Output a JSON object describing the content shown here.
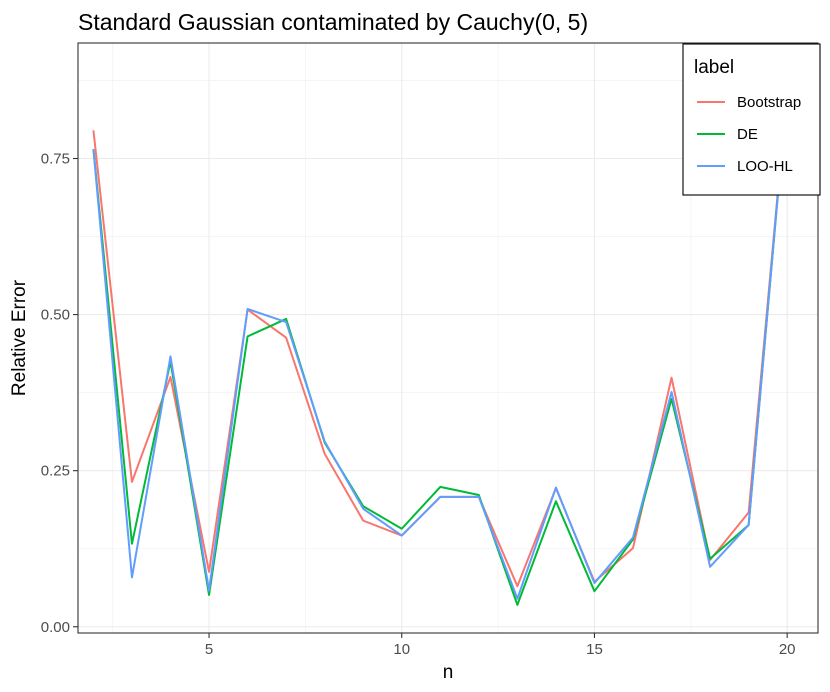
{
  "chart_data": {
    "type": "line",
    "title": "Standard Gaussian contaminated by Cauchy(0, 5)",
    "xlabel": "n",
    "ylabel": "Relative Error",
    "xlim": [
      1.6,
      20.8
    ],
    "ylim": [
      -0.01,
      0.935
    ],
    "x_ticks": [
      5,
      10,
      15,
      20
    ],
    "y_ticks": [
      0.0,
      0.25,
      0.5,
      0.75
    ],
    "x_tick_labels": [
      "5",
      "10",
      "15",
      "20"
    ],
    "y_tick_labels": [
      "0.00",
      "0.25",
      "0.50",
      "0.75"
    ],
    "grid": true,
    "legend": {
      "title": "label",
      "position": "top-right"
    },
    "x": [
      2,
      3,
      4,
      5,
      6,
      7,
      8,
      9,
      10,
      11,
      12,
      13,
      14,
      15,
      16,
      17,
      18,
      19,
      20
    ],
    "series": [
      {
        "name": "Bootstrap",
        "color": "#F8766D",
        "values": [
          0.795,
          0.232,
          0.4,
          0.088,
          0.508,
          0.463,
          0.277,
          0.17,
          0.146,
          0.208,
          0.208,
          0.065,
          0.222,
          0.072,
          0.126,
          0.399,
          0.107,
          0.183,
          0.86
        ]
      },
      {
        "name": "DE",
        "color": "#00BA38",
        "values": [
          0.765,
          0.133,
          0.425,
          0.051,
          0.465,
          0.493,
          0.295,
          0.193,
          0.157,
          0.224,
          0.211,
          0.035,
          0.201,
          0.057,
          0.14,
          0.365,
          0.109,
          0.163,
          0.86
        ]
      },
      {
        "name": "LOO-HL",
        "color": "#619CFF",
        "values": [
          0.765,
          0.079,
          0.433,
          0.058,
          0.509,
          0.488,
          0.297,
          0.189,
          0.146,
          0.208,
          0.208,
          0.045,
          0.223,
          0.07,
          0.143,
          0.376,
          0.096,
          0.163,
          0.86
        ]
      }
    ]
  }
}
